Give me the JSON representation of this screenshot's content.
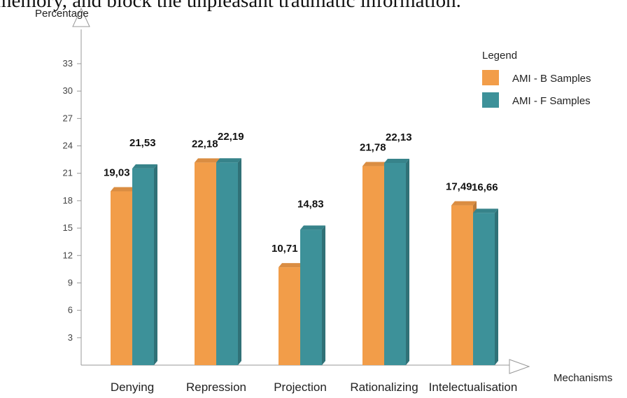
{
  "caption_fragment": "memory, and block the unpleasant traumatic information.",
  "chart_data": {
    "type": "bar",
    "ylabel": "Percentage",
    "xlabel": "Mechanisms",
    "ylim": [
      0,
      33
    ],
    "yticks": [
      3,
      6,
      9,
      12,
      15,
      18,
      21,
      24,
      27,
      30,
      33
    ],
    "grid": false,
    "legend_position": "top-right",
    "legend_title": "Legend",
    "categories": [
      "Denying",
      "Repression",
      "Projection",
      "Rationalizing",
      "Intelectualisation"
    ],
    "series": [
      {
        "name": "AMI - B Samples",
        "color": "#F29D49",
        "values": [
          19.03,
          22.18,
          10.71,
          21.78,
          17.49
        ],
        "labels": [
          "19,03",
          "22,18",
          "10,71",
          "21,78",
          "17,49"
        ]
      },
      {
        "name": "AMI - F Samples",
        "color": "#3D9199",
        "values": [
          21.53,
          22.19,
          14.83,
          22.13,
          16.66
        ],
        "labels": [
          "21,53",
          "22,19",
          "14,83",
          "22,13",
          "16,66"
        ]
      }
    ]
  }
}
